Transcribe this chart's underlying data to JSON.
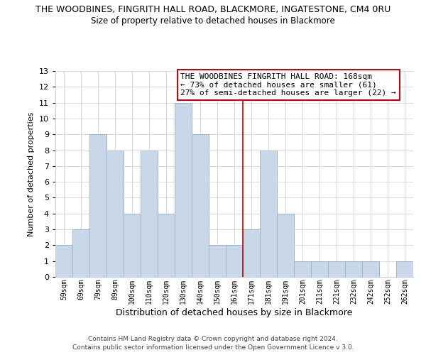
{
  "title": "THE WOODBINES, FINGRITH HALL ROAD, BLACKMORE, INGATESTONE, CM4 0RU",
  "subtitle": "Size of property relative to detached houses in Blackmore",
  "xlabel": "Distribution of detached houses by size in Blackmore",
  "ylabel": "Number of detached properties",
  "bar_labels": [
    "59sqm",
    "69sqm",
    "79sqm",
    "89sqm",
    "100sqm",
    "110sqm",
    "120sqm",
    "130sqm",
    "140sqm",
    "150sqm",
    "161sqm",
    "171sqm",
    "181sqm",
    "191sqm",
    "201sqm",
    "211sqm",
    "221sqm",
    "232sqm",
    "242sqm",
    "252sqm",
    "262sqm"
  ],
  "bar_values": [
    2,
    3,
    9,
    8,
    4,
    8,
    4,
    11,
    9,
    2,
    2,
    3,
    8,
    4,
    1,
    1,
    1,
    1,
    1,
    0,
    1
  ],
  "bar_color": "#c8d8e8",
  "bar_edge_color": "#a0b8cc",
  "ylim": [
    0,
    13
  ],
  "yticks": [
    0,
    1,
    2,
    3,
    4,
    5,
    6,
    7,
    8,
    9,
    10,
    11,
    12,
    13
  ],
  "vline_x": 10.5,
  "vline_color": "#cc0000",
  "annotation_title": "THE WOODBINES FINGRITH HALL ROAD: 168sqm",
  "annotation_line1": "← 73% of detached houses are smaller (61)",
  "annotation_line2": "27% of semi-detached houses are larger (22) →",
  "footer1": "Contains HM Land Registry data © Crown copyright and database right 2024.",
  "footer2": "Contains public sector information licensed under the Open Government Licence v 3.0.",
  "background_color": "#ffffff",
  "grid_color": "#dddddd"
}
